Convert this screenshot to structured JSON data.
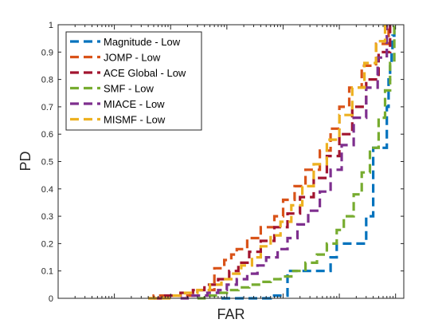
{
  "chart_data": {
    "type": "line",
    "title": "",
    "xlabel": "FAR",
    "ylabel": "PD",
    "x_scale": "log",
    "xlim": [
      1e-06,
      1.4
    ],
    "ylim": [
      0,
      1
    ],
    "y_ticks": [
      "0",
      "0.1",
      "0.2",
      "0.3",
      "0.4",
      "0.5",
      "0.6",
      "0.7",
      "0.8",
      "0.9",
      "1"
    ],
    "x_tick_labels": [],
    "grid": false,
    "legend_position": "top-left",
    "line_style": "dashed",
    "series": [
      {
        "name": "Magnitude - Low",
        "color": "#0072BD",
        "x": [
          0.0008,
          0.005,
          0.006,
          0.012,
          0.012,
          0.025,
          0.07,
          0.07,
          0.09,
          0.09,
          0.3,
          0.4,
          0.4,
          0.7,
          0.75,
          0.8,
          0.85,
          0.88,
          0.95
        ],
        "y": [
          0,
          0,
          0.01,
          0.01,
          0.1,
          0.1,
          0.12,
          0.15,
          0.15,
          0.2,
          0.3,
          0.4,
          0.55,
          0.7,
          0.8,
          0.86,
          0.9,
          0.96,
          1.0
        ]
      },
      {
        "name": "JOMP - Low",
        "color": "#D95319",
        "x": [
          4e-05,
          5e-05,
          8e-05,
          0.00012,
          0.00018,
          0.0003,
          0.0006,
          0.0006,
          0.0009,
          0.0009,
          0.0012,
          0.0015,
          0.0023,
          0.004,
          0.007,
          0.01,
          0.016,
          0.025,
          0.045,
          0.07,
          0.1,
          0.15,
          0.25,
          0.45,
          0.75
        ],
        "y": [
          0,
          0.01,
          0.01,
          0.01,
          0.01,
          0.03,
          0.08,
          0.11,
          0.11,
          0.14,
          0.16,
          0.18,
          0.22,
          0.26,
          0.3,
          0.36,
          0.41,
          0.47,
          0.54,
          0.62,
          0.7,
          0.77,
          0.85,
          0.93,
          1.0
        ]
      },
      {
        "name": "ACE Global - Low",
        "color": "#A2142F",
        "x": [
          5e-05,
          8e-05,
          0.0001,
          0.00015,
          0.00025,
          0.0004,
          0.0007,
          0.0011,
          0.0016,
          0.0025,
          0.004,
          0.007,
          0.012,
          0.02,
          0.035,
          0.06,
          0.1,
          0.17,
          0.3,
          0.5,
          0.8
        ],
        "y": [
          0,
          0.01,
          0.01,
          0.02,
          0.03,
          0.05,
          0.07,
          0.1,
          0.13,
          0.17,
          0.21,
          0.26,
          0.31,
          0.37,
          0.44,
          0.52,
          0.6,
          0.7,
          0.8,
          0.9,
          1.0
        ]
      },
      {
        "name": "SMF - Low",
        "color": "#77AC30",
        "x": [
          0.0003,
          0.0004,
          0.0007,
          0.001,
          0.0016,
          0.0025,
          0.004,
          0.006,
          0.009,
          0.014,
          0.025,
          0.04,
          0.06,
          0.09,
          0.12,
          0.18,
          0.25,
          0.35,
          0.5,
          0.65,
          0.8,
          0.95
        ],
        "y": [
          0,
          0.01,
          0.02,
          0.03,
          0.04,
          0.05,
          0.06,
          0.07,
          0.08,
          0.1,
          0.13,
          0.16,
          0.2,
          0.25,
          0.3,
          0.38,
          0.46,
          0.55,
          0.66,
          0.76,
          0.86,
          1.0
        ]
      },
      {
        "name": "MIACE - Low",
        "color": "#7E2F8E",
        "x": [
          0.00015,
          0.0002,
          0.0003,
          0.00045,
          0.0007,
          0.001,
          0.0015,
          0.0023,
          0.0035,
          0.005,
          0.008,
          0.012,
          0.018,
          0.028,
          0.045,
          0.07,
          0.11,
          0.18,
          0.3,
          0.48,
          0.7
        ],
        "y": [
          0,
          0.01,
          0.01,
          0.02,
          0.03,
          0.05,
          0.07,
          0.09,
          0.12,
          0.15,
          0.18,
          0.22,
          0.27,
          0.32,
          0.39,
          0.47,
          0.56,
          0.66,
          0.77,
          0.88,
          1.0
        ]
      },
      {
        "name": "MISMF - Low",
        "color": "#EDB120",
        "x": [
          4e-05,
          6e-05,
          0.0001,
          0.00018,
          0.0003,
          0.0005,
          0.0008,
          0.0012,
          0.0018,
          0.0028,
          0.004,
          0.006,
          0.009,
          0.014,
          0.022,
          0.035,
          0.06,
          0.1,
          0.17,
          0.28,
          0.45,
          0.65
        ],
        "y": [
          0,
          0.0,
          0.01,
          0.02,
          0.03,
          0.05,
          0.07,
          0.09,
          0.12,
          0.15,
          0.19,
          0.23,
          0.28,
          0.34,
          0.41,
          0.49,
          0.58,
          0.67,
          0.77,
          0.86,
          0.94,
          1.0
        ]
      }
    ]
  }
}
